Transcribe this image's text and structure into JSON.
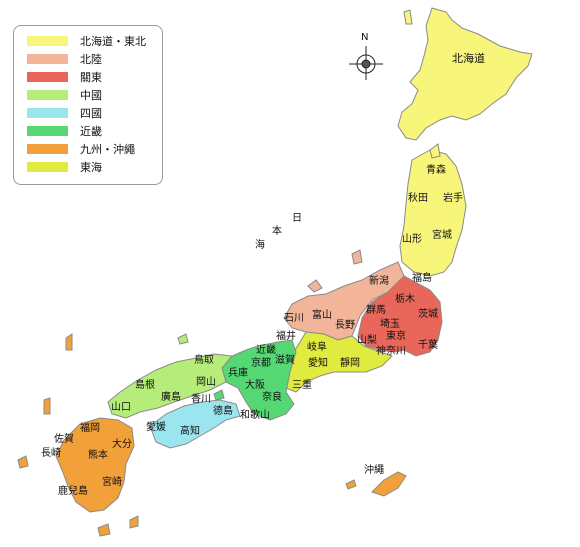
{
  "colors": {
    "hokkaido_tohoku": "#f7f57a",
    "hokuriku": "#f2b59a",
    "kanto": "#e8675a",
    "chugoku": "#b6ec7a",
    "shikoku": "#9be6ee",
    "kinki": "#55d774",
    "kyushu": "#f2a13a",
    "tokai": "#e1ea3e",
    "outline": "#8a8a8a"
  },
  "legend": {
    "items": [
      {
        "label": "北海道・東北",
        "color": "#f7f57a"
      },
      {
        "label": "北陸",
        "color": "#f2b59a"
      },
      {
        "label": "關東",
        "color": "#e8675a"
      },
      {
        "label": "中國",
        "color": "#b6ec7a"
      },
      {
        "label": "四國",
        "color": "#9be6ee"
      },
      {
        "label": "近畿",
        "color": "#55d774"
      },
      {
        "label": "九州・沖繩",
        "color": "#f2a13a"
      },
      {
        "label": "東海",
        "color": "#e1ea3e"
      }
    ]
  },
  "compass": {
    "north_label": "N",
    "icon": "compass-rose-icon"
  },
  "sea_label": {
    "chars": [
      "日",
      "本",
      "海"
    ]
  },
  "prefectures": {
    "hokkaido": "北海道",
    "aomori": "青森",
    "akita": "秋田",
    "iwate": "岩手",
    "yamagata": "山形",
    "miyagi": "宮城",
    "fukushima": "福島",
    "niigata": "新潟",
    "tochigi": "栃木",
    "gunma": "群馬",
    "ibaraki": "茨城",
    "saitama": "埼玉",
    "tokyo": "東京",
    "chiba": "千葉",
    "kanagawa": "神奈川",
    "yamanashi": "山梨",
    "nagano": "長野",
    "toyama": "富山",
    "ishikawa": "石川",
    "fukui": "福井",
    "gifu": "岐阜",
    "shizuoka": "靜岡",
    "aichi": "愛知",
    "mie": "三重",
    "shiga": "滋賀",
    "kyoto": "京都",
    "osaka": "大阪",
    "hyogo": "兵庫",
    "nara": "奈良",
    "wakayama": "和歌山",
    "kinki_label": "近畿",
    "tottori": "鳥取",
    "okayama": "岡山",
    "shimane": "島根",
    "hiroshima": "廣島",
    "yamaguchi": "山口",
    "kagawa": "香川",
    "tokushima": "德島",
    "ehime": "愛媛",
    "kochi": "高知",
    "fukuoka": "福岡",
    "saga": "佐賀",
    "nagasaki": "長崎",
    "oita": "大分",
    "kumamoto": "熊本",
    "miyazaki": "宮崎",
    "kagoshima": "鹿兒島",
    "okinawa": "沖繩"
  }
}
